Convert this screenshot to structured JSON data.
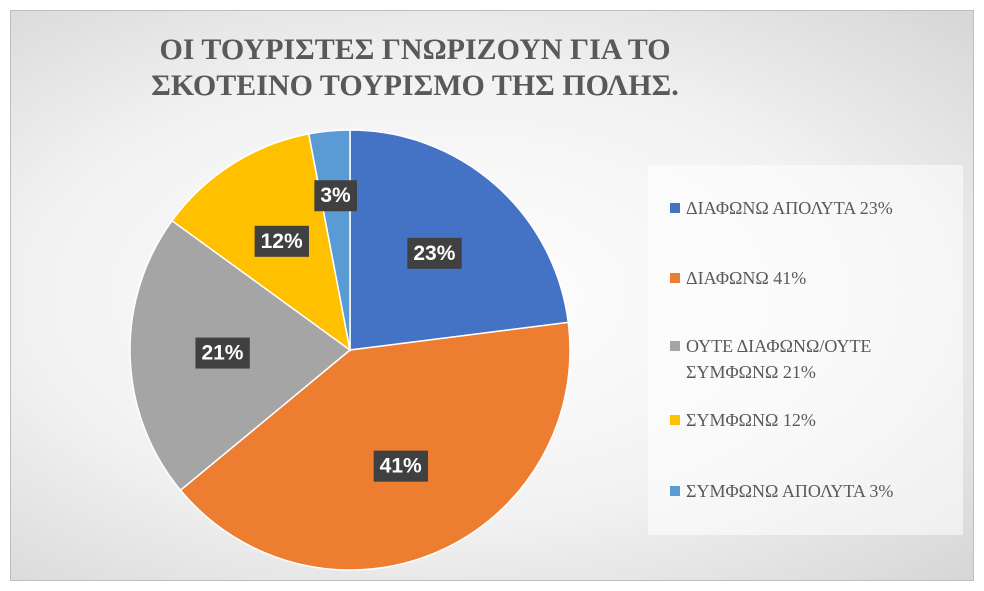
{
  "chart_data": {
    "type": "pie",
    "title": "ΟΙ ΤΟΥΡΙΣΤΕΣ ΓΝΩΡΙΖΟΥΝ ΓΙΑ ΤΟ ΣΚΟΤΕΙΝΟ ΤΟΥΡΙΣΜΟ ΤΗΣ ΠΟΛΗΣ.",
    "categories": [
      "ΔΙΑΦΩΝΩ ΑΠΟΛΥΤΑ 23%",
      "ΔΙΑΦΩΝΩ 41%",
      "ΟΥΤΕ ΔΙΑΦΩΝΩ/ΟΥΤΕ ΣΥΜΦΩΝΩ 21%",
      "ΣΥΜΦΩΝΩ 12%",
      "ΣΥΜΦΩΝΩ ΑΠΟΛΥΤΑ 3%"
    ],
    "values": [
      23,
      41,
      21,
      12,
      3
    ],
    "value_labels": [
      "23%",
      "41%",
      "21%",
      "12%",
      "3%"
    ],
    "colors": [
      "#4472c4",
      "#ed7d31",
      "#a5a5a5",
      "#ffc000",
      "#5b9bd5"
    ],
    "legend": "right"
  }
}
